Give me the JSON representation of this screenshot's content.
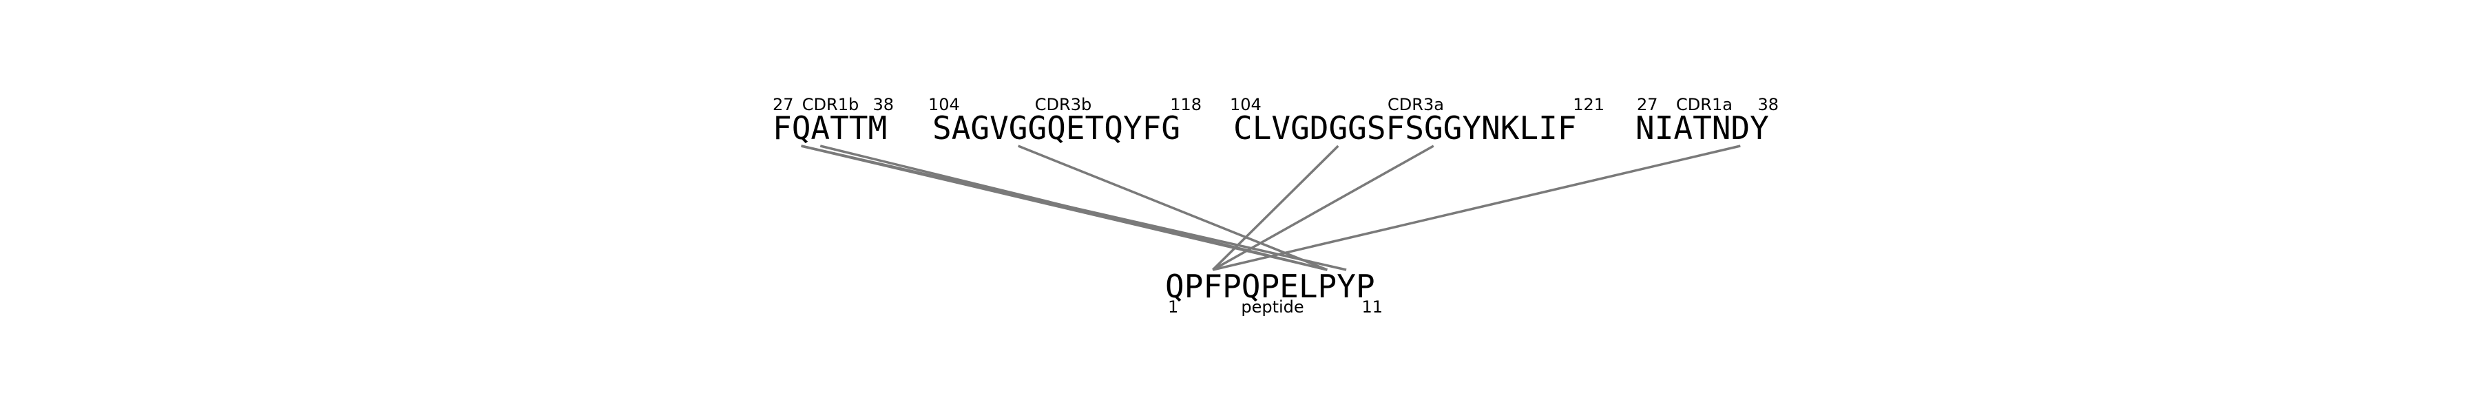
{
  "colors": {
    "text": "#000000",
    "link": "#7a7a7a",
    "background": "#ffffff"
  },
  "segments": [
    {
      "id": "cdr1b",
      "name": "CDR1b",
      "start": "27",
      "end": "38",
      "sequence": "FQATTM"
    },
    {
      "id": "cdr3b",
      "name": "CDR3b",
      "start": "104",
      "end": "118",
      "sequence": "SAGVGGQETQYFG"
    },
    {
      "id": "cdr3a",
      "name": "CDR3a",
      "start": "104",
      "end": "121",
      "sequence": "CLVGDGGSFSGGYNKLIF"
    },
    {
      "id": "cdr1a",
      "name": "CDR1a",
      "start": "27",
      "end": "38",
      "sequence": "NIATNDY"
    }
  ],
  "peptide": {
    "name": "peptide",
    "start": "1",
    "end": "11",
    "sequence": "QPFPQPELPYP"
  },
  "contacts": [
    {
      "segment": "cdr1b",
      "seg_index": 1,
      "pep_index": 8
    },
    {
      "segment": "cdr1b",
      "seg_index": 1,
      "pep_index": 9
    },
    {
      "segment": "cdr1b",
      "seg_index": 2,
      "pep_index": 8
    },
    {
      "segment": "cdr3b",
      "seg_index": 4,
      "pep_index": 8
    },
    {
      "segment": "cdr3a",
      "seg_index": 5,
      "pep_index": 2
    },
    {
      "segment": "cdr3a",
      "seg_index": 10,
      "pep_index": 2
    },
    {
      "segment": "cdr1a",
      "seg_index": 5,
      "pep_index": 2
    }
  ]
}
